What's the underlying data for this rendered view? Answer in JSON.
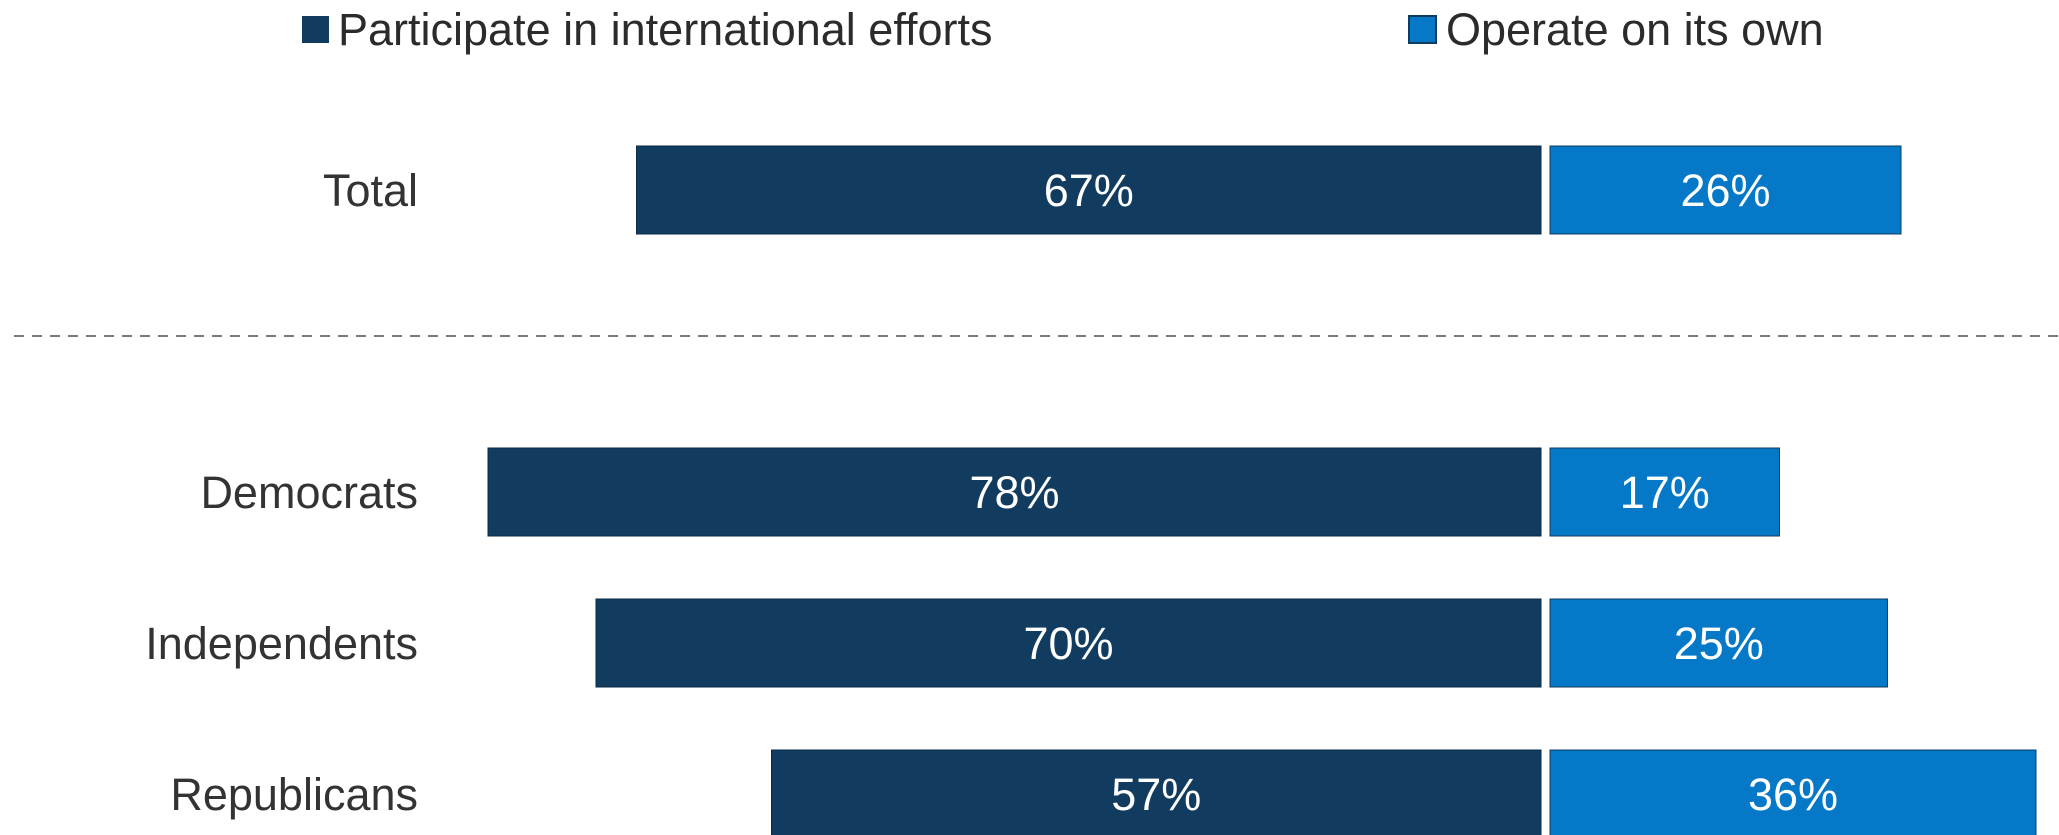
{
  "chart_data": {
    "type": "bar",
    "orientation": "horizontal",
    "stacking": "diverging",
    "categories": [
      "Total",
      "Democrats",
      "Independents",
      "Republicans"
    ],
    "series": [
      {
        "name": "Participate in international efforts",
        "color": "#113c60",
        "values": [
          67,
          78,
          70,
          57
        ],
        "labels": [
          "67%",
          "78%",
          "70%",
          "57%"
        ]
      },
      {
        "name": "Operate on its own",
        "color": "#0678c8",
        "values": [
          26,
          17,
          25,
          36
        ],
        "labels": [
          "26%",
          "17%",
          "25%",
          "36%"
        ]
      }
    ],
    "legend": "top",
    "grid": false,
    "separator_after_category": "Total"
  }
}
